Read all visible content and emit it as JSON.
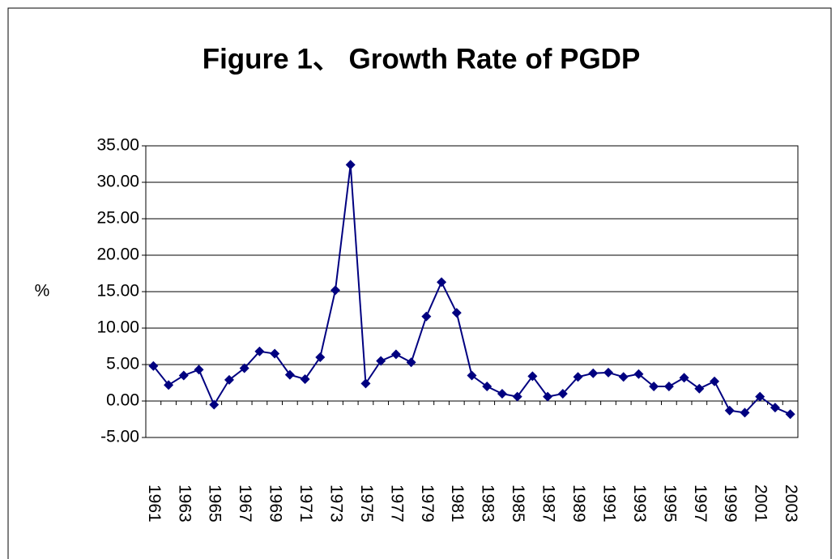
{
  "chart_data": {
    "type": "line",
    "title": "Figure 1、 Growth Rate of PGDP",
    "y_label": "%",
    "categories": [
      "1961",
      null,
      "1963",
      null,
      "1965",
      null,
      "1967",
      null,
      "1969",
      null,
      "1971",
      null,
      "1973",
      null,
      "1975",
      null,
      "1977",
      null,
      "1979",
      null,
      "1981",
      null,
      "1983",
      null,
      "1985",
      null,
      "1987",
      null,
      "1989",
      null,
      "1991",
      null,
      "1993",
      null,
      "1995",
      null,
      "1997",
      null,
      "1999",
      null,
      "2001",
      null,
      "2003"
    ],
    "values": [
      4.8,
      2.2,
      3.5,
      4.3,
      -0.5,
      2.9,
      4.5,
      6.8,
      6.5,
      3.6,
      3.0,
      6.0,
      15.2,
      32.4,
      2.4,
      5.5,
      6.4,
      5.3,
      11.6,
      16.3,
      12.1,
      3.5,
      2.0,
      1.0,
      0.6,
      3.4,
      0.6,
      1.0,
      3.3,
      3.8,
      3.9,
      3.3,
      3.7,
      2.0,
      2.0,
      3.2,
      1.7,
      2.7,
      -1.3,
      -1.6,
      0.6,
      -0.9,
      -1.8
    ],
    "color": "#000080",
    "ylim": [
      -5,
      35
    ],
    "yticks": [
      {
        "value": -5,
        "label": "-5.00"
      },
      {
        "value": 0,
        "label": "0.00"
      },
      {
        "value": 5,
        "label": "5.00"
      },
      {
        "value": 10,
        "label": "10.00"
      },
      {
        "value": 15,
        "label": "15.00"
      },
      {
        "value": 20,
        "label": "20.00"
      },
      {
        "value": 25,
        "label": "25.00"
      },
      {
        "value": 30,
        "label": "30.00"
      },
      {
        "value": 35,
        "label": "35.00"
      }
    ],
    "grid": true
  }
}
